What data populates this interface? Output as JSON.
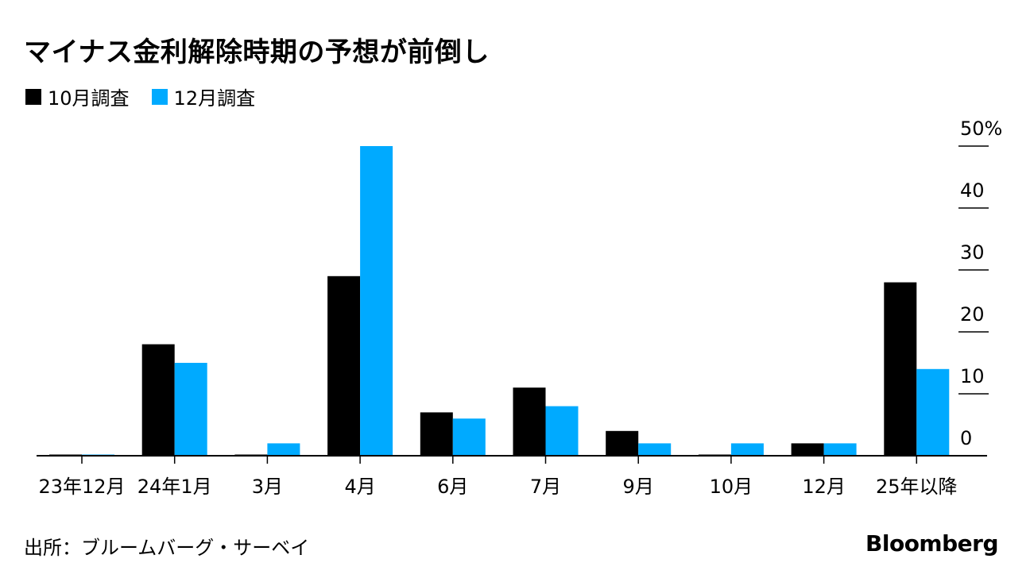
{
  "title": "マイナス金利解除時期の予想が前倒し",
  "source": "出所：ブルームバーグ・サーベイ",
  "logo": "Bloomberg",
  "colors": {
    "series1": "#000000",
    "series2": "#00aaff"
  },
  "chart_data": {
    "type": "bar",
    "title": "マイナス金利解除時期の予想が前倒し",
    "categories": [
      "23年12月",
      "24年1月",
      "3月",
      "4月",
      "6月",
      "7月",
      "9月",
      "10月",
      "12月",
      "25年以降"
    ],
    "series": [
      {
        "name": "10月調査",
        "values": [
          0,
          18,
          0,
          29,
          7,
          11,
          4,
          0,
          2,
          28
        ]
      },
      {
        "name": "12月調査",
        "values": [
          0,
          15,
          2,
          50,
          6,
          8,
          2,
          2,
          2,
          14
        ]
      }
    ],
    "y_ticks": [
      "0",
      "10",
      "20",
      "30",
      "40",
      "50%"
    ],
    "ylim": [
      0,
      50
    ],
    "ylabel": "",
    "xlabel": "",
    "legend": "top-left",
    "grid": false,
    "y_axis_position": "right"
  }
}
